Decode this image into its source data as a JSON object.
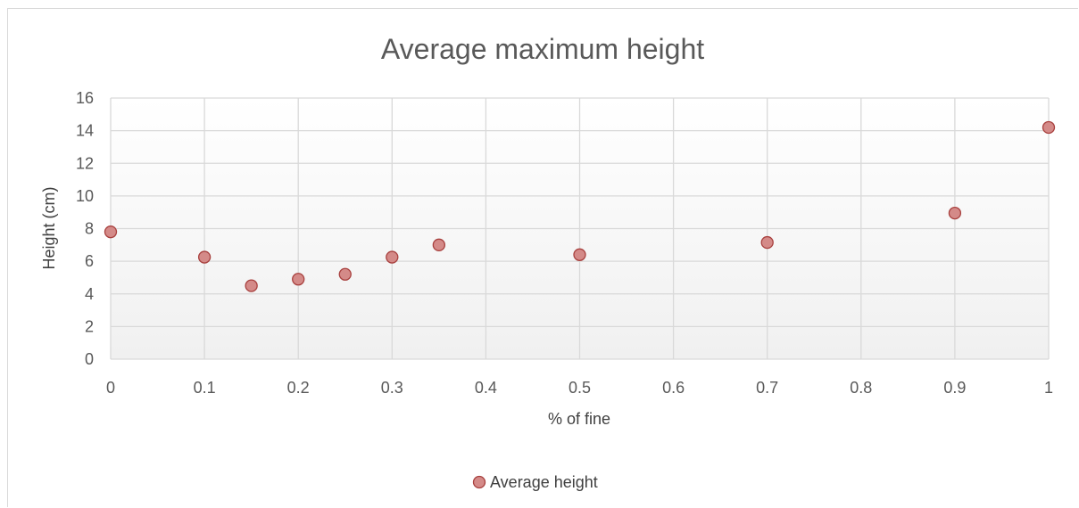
{
  "chart_data": {
    "type": "scatter",
    "title": "Average maximum height",
    "xlabel": "% of fine",
    "ylabel": "Height (cm)",
    "xlim": [
      0,
      1
    ],
    "ylim": [
      0,
      16
    ],
    "x_ticks": [
      "0",
      "0.1",
      "0.2",
      "0.3",
      "0.4",
      "0.5",
      "0.6",
      "0.7",
      "0.8",
      "0.9",
      "1"
    ],
    "y_ticks": [
      "0",
      "2",
      "4",
      "6",
      "8",
      "10",
      "12",
      "14",
      "16"
    ],
    "grid": true,
    "legend_position": "bottom",
    "series": [
      {
        "name": "Average height",
        "color": "#d48a88",
        "stroke": "#a8403e",
        "x": [
          0,
          0.1,
          0.15,
          0.2,
          0.25,
          0.3,
          0.35,
          0.5,
          0.7,
          0.9,
          1.0
        ],
        "y": [
          7.8,
          6.25,
          4.5,
          4.9,
          5.2,
          6.25,
          7.0,
          6.4,
          7.15,
          8.95,
          14.2
        ]
      }
    ]
  }
}
